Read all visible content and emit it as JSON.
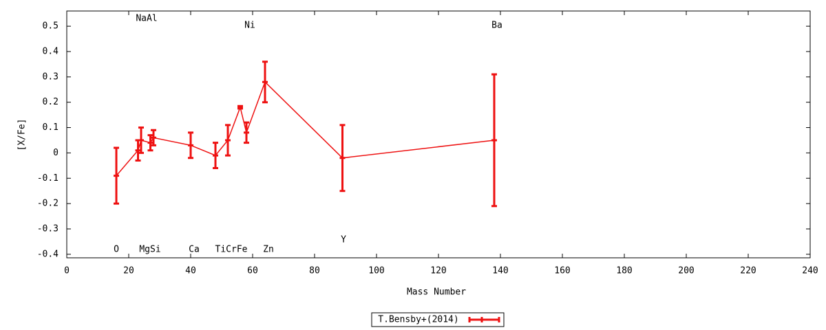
{
  "chart_data": {
    "type": "errorline",
    "xlabel": "Mass Number",
    "ylabel": "[X/Fe]",
    "xlim": [
      0,
      240
    ],
    "xticks": [
      0,
      20,
      40,
      60,
      80,
      100,
      120,
      140,
      160,
      180,
      200,
      220,
      240
    ],
    "ylim": [
      -0.414,
      0.56
    ],
    "yticks": [
      -0.4,
      -0.3,
      -0.2,
      -0.1,
      0,
      0.1,
      0.2,
      0.3,
      0.4,
      0.5
    ],
    "annotations": [
      "NaAl",
      "Ni",
      "Ba",
      "O",
      "MgSi",
      "Ca",
      "TiCrFe",
      "Zn",
      "Y"
    ],
    "series": [
      {
        "name": "T.Bensby+(2014)",
        "color": "#ee1111",
        "x": [
          16,
          23,
          24,
          27,
          28,
          40,
          48,
          52,
          56,
          58,
          64,
          89,
          138
        ],
        "values": [
          -0.09,
          0.01,
          0.05,
          0.04,
          0.06,
          0.03,
          -0.01,
          0.05,
          0.18,
          0.08,
          0.28,
          -0.02,
          0.05
        ],
        "errors": [
          0.11,
          0.04,
          0.05,
          0.03,
          0.03,
          0.05,
          0.05,
          0.06,
          0.005,
          0.04,
          0.08,
          0.13,
          0.26
        ]
      }
    ]
  }
}
